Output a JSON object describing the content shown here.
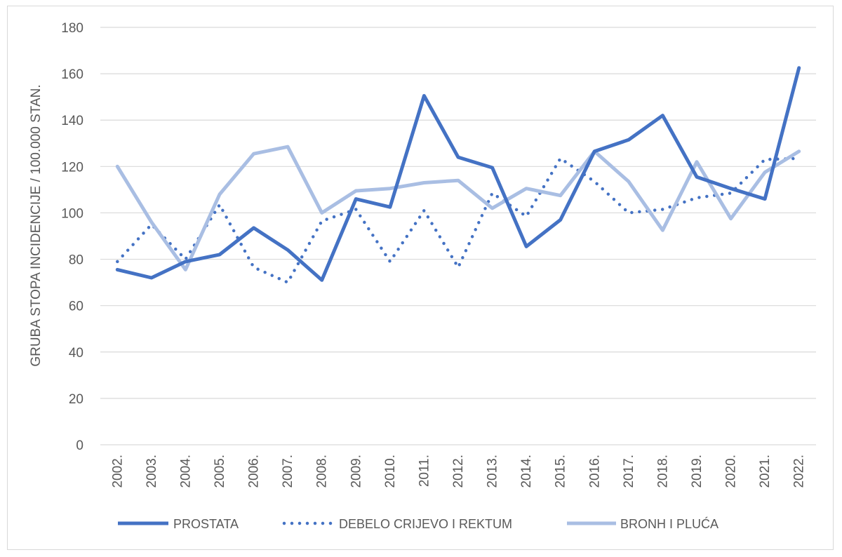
{
  "chart_data": {
    "type": "line",
    "ylabel": "GRUBA STOPA INCIDENCIJE / 100.000 STAN.",
    "xlabel": "",
    "ylim": [
      0,
      180
    ],
    "yticks": [
      0,
      20,
      40,
      60,
      80,
      100,
      120,
      140,
      160,
      180
    ],
    "grid": true,
    "legend_position": "bottom",
    "categories": [
      "2002.",
      "2003.",
      "2004.",
      "2005.",
      "2006.",
      "2007.",
      "2008.",
      "2009.",
      "2010.",
      "2011.",
      "2012.",
      "2013.",
      "2014.",
      "2015.",
      "2016.",
      "2017.",
      "2018.",
      "2019.",
      "2020.",
      "2021.",
      "2022."
    ],
    "series": [
      {
        "name": "PROSTATA",
        "style": "solid",
        "color": "#4472c4",
        "values": [
          75.5,
          72,
          79,
          82,
          93.5,
          84,
          71,
          106,
          102.5,
          150.5,
          124,
          119.5,
          85.5,
          97,
          126.5,
          131.5,
          142,
          115.5,
          110.5,
          106,
          162.5
        ]
      },
      {
        "name": "DEBELO CRIJEVO I REKTUM",
        "style": "dotted",
        "color": "#4472c4",
        "values": [
          79,
          95,
          80,
          103.5,
          76.5,
          70,
          96.5,
          101.5,
          79,
          101,
          76.5,
          108.5,
          98.5,
          123.5,
          113.5,
          100,
          101.5,
          106.5,
          108.5,
          123,
          123.5
        ]
      },
      {
        "name": "BRONH I PLUĆA",
        "style": "solid",
        "color": "#a9bee3",
        "values": [
          120,
          96,
          75.5,
          108,
          125.5,
          128.5,
          100,
          109.5,
          110.5,
          113,
          114,
          102,
          110.5,
          107.5,
          126.5,
          113.5,
          92.5,
          122,
          97.5,
          117.5,
          126.5
        ]
      }
    ]
  }
}
